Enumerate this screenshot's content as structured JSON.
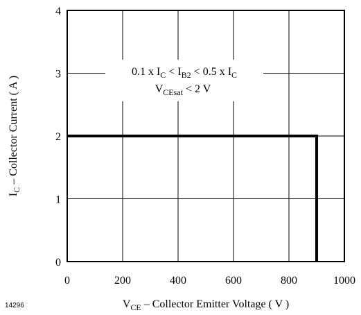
{
  "chart_data": {
    "type": "line",
    "xlabel": {
      "main": "V",
      "sub": "CE",
      "rest": " – Collector Emitter Voltage ( V )"
    },
    "ylabel": {
      "main": "I",
      "sub": "C",
      "rest": " – Collector Current ( A )"
    },
    "xlim": [
      0,
      1000
    ],
    "ylim": [
      0,
      4
    ],
    "xticks": [
      0,
      200,
      400,
      600,
      800,
      1000
    ],
    "yticks": [
      0,
      1,
      2,
      3,
      4
    ],
    "grid": true,
    "series": [
      {
        "x": [
          0,
          900,
          900
        ],
        "y": [
          2,
          2,
          0
        ],
        "color": "#000000"
      }
    ],
    "annotation": {
      "line1": [
        {
          "t": "0.1 x I"
        },
        {
          "sub": "C"
        },
        {
          "t": " < I"
        },
        {
          "sub": "B2"
        },
        {
          "t": " < 0.5 x I"
        },
        {
          "sub": "C"
        }
      ],
      "line2": [
        {
          "t": "V"
        },
        {
          "sub": "CEsat"
        },
        {
          "t": " < 2 V"
        }
      ]
    },
    "figure_code": "14296"
  }
}
